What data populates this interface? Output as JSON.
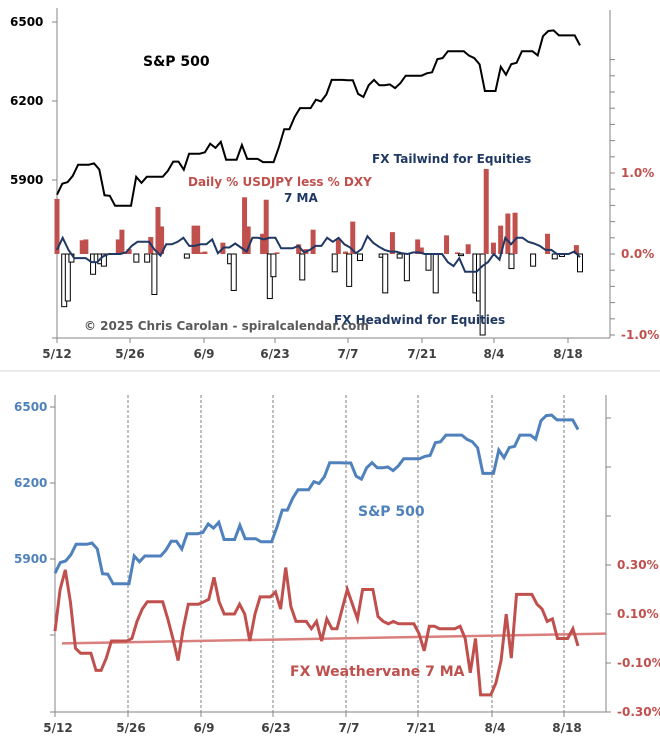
{
  "chart_data": [
    {
      "type": "line+bar",
      "panel": "top",
      "title_labels": {
        "spx": "S&P 500",
        "fx_daily": "Daily % USDJPY less % DXY",
        "ma": "7 MA",
        "tailwind": "FX Tailwind for Equities",
        "headwind": "FX Headwind for Equities",
        "copyright": "© 2025 Chris Carolan - spiralcalendar.com"
      },
      "x_tick_labels": [
        "5/12",
        "5/26",
        "6/9",
        "6/23",
        "7/7",
        "7/21",
        "8/4",
        "8/18"
      ],
      "left_axis": {
        "ticks": [
          6500,
          6200,
          5900
        ],
        "labels": [
          "6500",
          "6200",
          "5900"
        ],
        "range": [
          5600,
          6560
        ]
      },
      "right_axis": {
        "ticks": [
          1.0,
          0.0,
          -1.0
        ],
        "labels": [
          "1.0%",
          "0.0%",
          "-1.0%"
        ],
        "range": [
          -1.0,
          2.0
        ]
      },
      "series": [
        {
          "name": "S&P 500",
          "color": "#000000",
          "values": [
            5844,
            5886,
            5892,
            5916,
            5958,
            5958,
            5958,
            5963,
            5940,
            5842,
            5840,
            5802,
            5802,
            5802,
            5802,
            5912,
            5889,
            5912,
            5912,
            5912,
            5912,
            5935,
            5970,
            5970,
            5939,
            6000,
            6000,
            6000,
            6005,
            6038,
            6022,
            6045,
            5977,
            5977,
            5977,
            6033,
            5980,
            5980,
            5980,
            5968,
            5968,
            5968,
            6025,
            6093,
            6093,
            6140,
            6173,
            6173,
            6173,
            6205,
            6198,
            6225,
            6280,
            6280,
            6280,
            6279,
            6279,
            6227,
            6215,
            6260,
            6280,
            6260,
            6260,
            6263,
            6249,
            6268,
            6296,
            6296,
            6296,
            6296,
            6305,
            6309,
            6359,
            6363,
            6389,
            6389,
            6389,
            6389,
            6372,
            6363,
            6339,
            6238,
            6238,
            6238,
            6330,
            6300,
            6340,
            6345,
            6389,
            6389,
            6389,
            6373,
            6446,
            6466,
            6468,
            6449,
            6449,
            6449,
            6449,
            6411
          ]
        },
        {
          "name": "Daily % USDJPY less % DXY",
          "color": "#c0504d",
          "values": [
            0.68,
            0.0,
            -0.65,
            -0.58,
            -0.1,
            0.0,
            0.0,
            0.17,
            0.18,
            0.0,
            -0.25,
            -0.1,
            -0.12,
            -0.15,
            0.0,
            0.0,
            0.0,
            0.18,
            0.3,
            0.02,
            0.06,
            0.0,
            -0.1,
            0.0,
            0.0,
            -0.1,
            0.21,
            -0.5,
            0.58,
            0.34,
            0.0,
            0.0,
            0.0,
            0.0,
            0.0,
            0.0,
            -0.05,
            0.0,
            0.35,
            0.35,
            0.02,
            0.03,
            0.0,
            0.0,
            0.0,
            0.0,
            0.14,
            0.0,
            -0.12,
            -0.45,
            0.0,
            0.0,
            0.7,
            0.34,
            0.0,
            0.0,
            0.0,
            0.25,
            0.67,
            -0.55,
            -0.28,
            0.02,
            0.0,
            0.0,
            0.0,
            0.0,
            0.0,
            0.12,
            -0.32,
            0.06,
            0.0,
            0.3,
            0.0,
            0.0,
            0.0,
            0.0,
            0.0,
            -0.22,
            0.18,
            0.0,
            0.03,
            -0.4,
            0.4,
            0.0,
            -0.08,
            0.0,
            0.0,
            0.0,
            0.0,
            0.0,
            -0.04,
            -0.48,
            0.0,
            0.27,
            0.0,
            -0.05,
            0.0,
            -0.33,
            0.0,
            0.0,
            0.18,
            0.08,
            0.0,
            -0.2,
            0.0,
            -0.48,
            0.0,
            0.0,
            0.23,
            0.0,
            0.0,
            0.02,
            -0.02,
            0.0,
            0.12,
            0.0,
            -0.48,
            -0.58,
            -1.0,
            1.05,
            0.0,
            0.14,
            0.0,
            0.35,
            0.0,
            0.5,
            -0.18,
            0.51,
            0.0,
            0.0,
            0.0,
            0.0,
            -0.15,
            0.0,
            0.0,
            0.0,
            0.25,
            0.0,
            -0.06,
            0.0,
            -0.03,
            0.0,
            0.0,
            0.0,
            0.11,
            -0.22
          ]
        },
        {
          "name": "7 MA",
          "color": "#1f3864",
          "values": [
            0.05,
            0.2,
            0.05,
            -0.05,
            -0.05,
            -0.05,
            -0.1,
            -0.1,
            -0.03,
            0.0,
            0.0,
            0.0,
            0.02,
            0.1,
            0.15,
            0.15,
            0.15,
            0.05,
            -0.02,
            0.12,
            0.12,
            0.15,
            0.2,
            0.1,
            0.1,
            0.12,
            0.12,
            0.18,
            0.01,
            0.08,
            0.08,
            0.13,
            0.08,
            0.03,
            0.2,
            0.2,
            0.18,
            0.2,
            0.2,
            0.07,
            0.07,
            0.07,
            0.1,
            0.02,
            0.05,
            0.1,
            0.1,
            0.2,
            0.15,
            0.2,
            0.12,
            0.08,
            0.01,
            0.06,
            0.22,
            0.14,
            0.09,
            0.05,
            0.03,
            0.03,
            0.01,
            0.0,
            0.02,
            0.02,
            0.0,
            0.0,
            0.0,
            0.0,
            -0.1,
            -0.15,
            -0.05,
            -0.22,
            -0.22,
            -0.22,
            -0.15,
            -0.1,
            0.0,
            -0.07,
            0.2,
            0.12,
            0.2,
            0.2,
            0.15,
            0.13,
            0.1,
            0.05,
            0.05,
            0.0,
            0.0,
            0.0,
            0.03,
            -0.04
          ]
        }
      ]
    },
    {
      "type": "line",
      "panel": "bottom",
      "title_labels": {
        "spx": "S&P 500",
        "weathervane": "FX Weathervane 7 MA"
      },
      "x_tick_labels": [
        "5/12",
        "5/26",
        "6/9",
        "6/23",
        "7/7",
        "7/21",
        "8/4",
        "8/18"
      ],
      "left_axis": {
        "ticks": [
          6500,
          6200,
          5900
        ],
        "labels": [
          "6500",
          "6200",
          "5900"
        ],
        "range": [
          5600,
          6560
        ]
      },
      "right_axis": {
        "ticks": [
          0.3,
          0.1,
          -0.1,
          -0.3
        ],
        "labels": [
          "0.30%",
          "0.10%",
          "-0.10%",
          "-0.30%"
        ],
        "range": [
          -0.3,
          0.9
        ]
      },
      "gridlines": "vertical-dashed",
      "series": [
        {
          "name": "S&P 500",
          "color": "#4f81bd",
          "values": [
            5844,
            5886,
            5892,
            5916,
            5958,
            5958,
            5958,
            5963,
            5940,
            5842,
            5840,
            5802,
            5802,
            5802,
            5802,
            5912,
            5889,
            5912,
            5912,
            5912,
            5912,
            5935,
            5970,
            5970,
            5939,
            6000,
            6000,
            6000,
            6005,
            6038,
            6022,
            6045,
            5977,
            5977,
            5977,
            6033,
            5980,
            5980,
            5980,
            5968,
            5968,
            5968,
            6025,
            6093,
            6093,
            6140,
            6173,
            6173,
            6173,
            6205,
            6198,
            6225,
            6280,
            6280,
            6280,
            6279,
            6279,
            6227,
            6215,
            6260,
            6280,
            6260,
            6260,
            6263,
            6249,
            6268,
            6296,
            6296,
            6296,
            6296,
            6305,
            6309,
            6359,
            6363,
            6389,
            6389,
            6389,
            6389,
            6372,
            6363,
            6339,
            6238,
            6238,
            6238,
            6330,
            6300,
            6340,
            6345,
            6389,
            6389,
            6389,
            6373,
            6446,
            6466,
            6468,
            6449,
            6449,
            6449,
            6449,
            6411
          ]
        },
        {
          "name": "FX Weathervane 7 MA",
          "color": "#c0504d",
          "values": [
            0.03,
            0.2,
            0.28,
            0.15,
            -0.04,
            -0.06,
            -0.06,
            -0.06,
            -0.13,
            -0.13,
            -0.08,
            -0.01,
            -0.01,
            -0.01,
            -0.01,
            0.0,
            0.07,
            0.12,
            0.15,
            0.15,
            0.15,
            0.15,
            0.08,
            0.0,
            -0.09,
            0.04,
            0.14,
            0.14,
            0.14,
            0.15,
            0.16,
            0.25,
            0.15,
            0.1,
            0.1,
            0.1,
            0.14,
            0.1,
            -0.01,
            0.1,
            0.17,
            0.17,
            0.17,
            0.19,
            0.12,
            0.29,
            0.13,
            0.07,
            0.07,
            0.07,
            0.04,
            0.07,
            -0.01,
            0.08,
            0.04,
            0.04,
            0.12,
            0.2,
            0.14,
            0.08,
            0.2,
            0.2,
            0.2,
            0.09,
            0.07,
            0.06,
            0.07,
            0.06,
            0.06,
            0.06,
            0.06,
            0.02,
            -0.05,
            0.05,
            0.05,
            0.04,
            0.04,
            0.04,
            0.04,
            0.05,
            0.0,
            -0.14,
            0.0,
            -0.23,
            -0.23,
            -0.23,
            -0.18,
            -0.09,
            0.1,
            -0.08,
            0.18,
            0.18,
            0.18,
            0.18,
            0.14,
            0.12,
            0.07,
            0.08,
            0.0,
            0.0,
            0.0,
            0.04,
            -0.03
          ]
        },
        {
          "name": "Trend line",
          "color": "#d9807e",
          "values": [
            -0.02,
            0.02
          ]
        }
      ]
    }
  ]
}
